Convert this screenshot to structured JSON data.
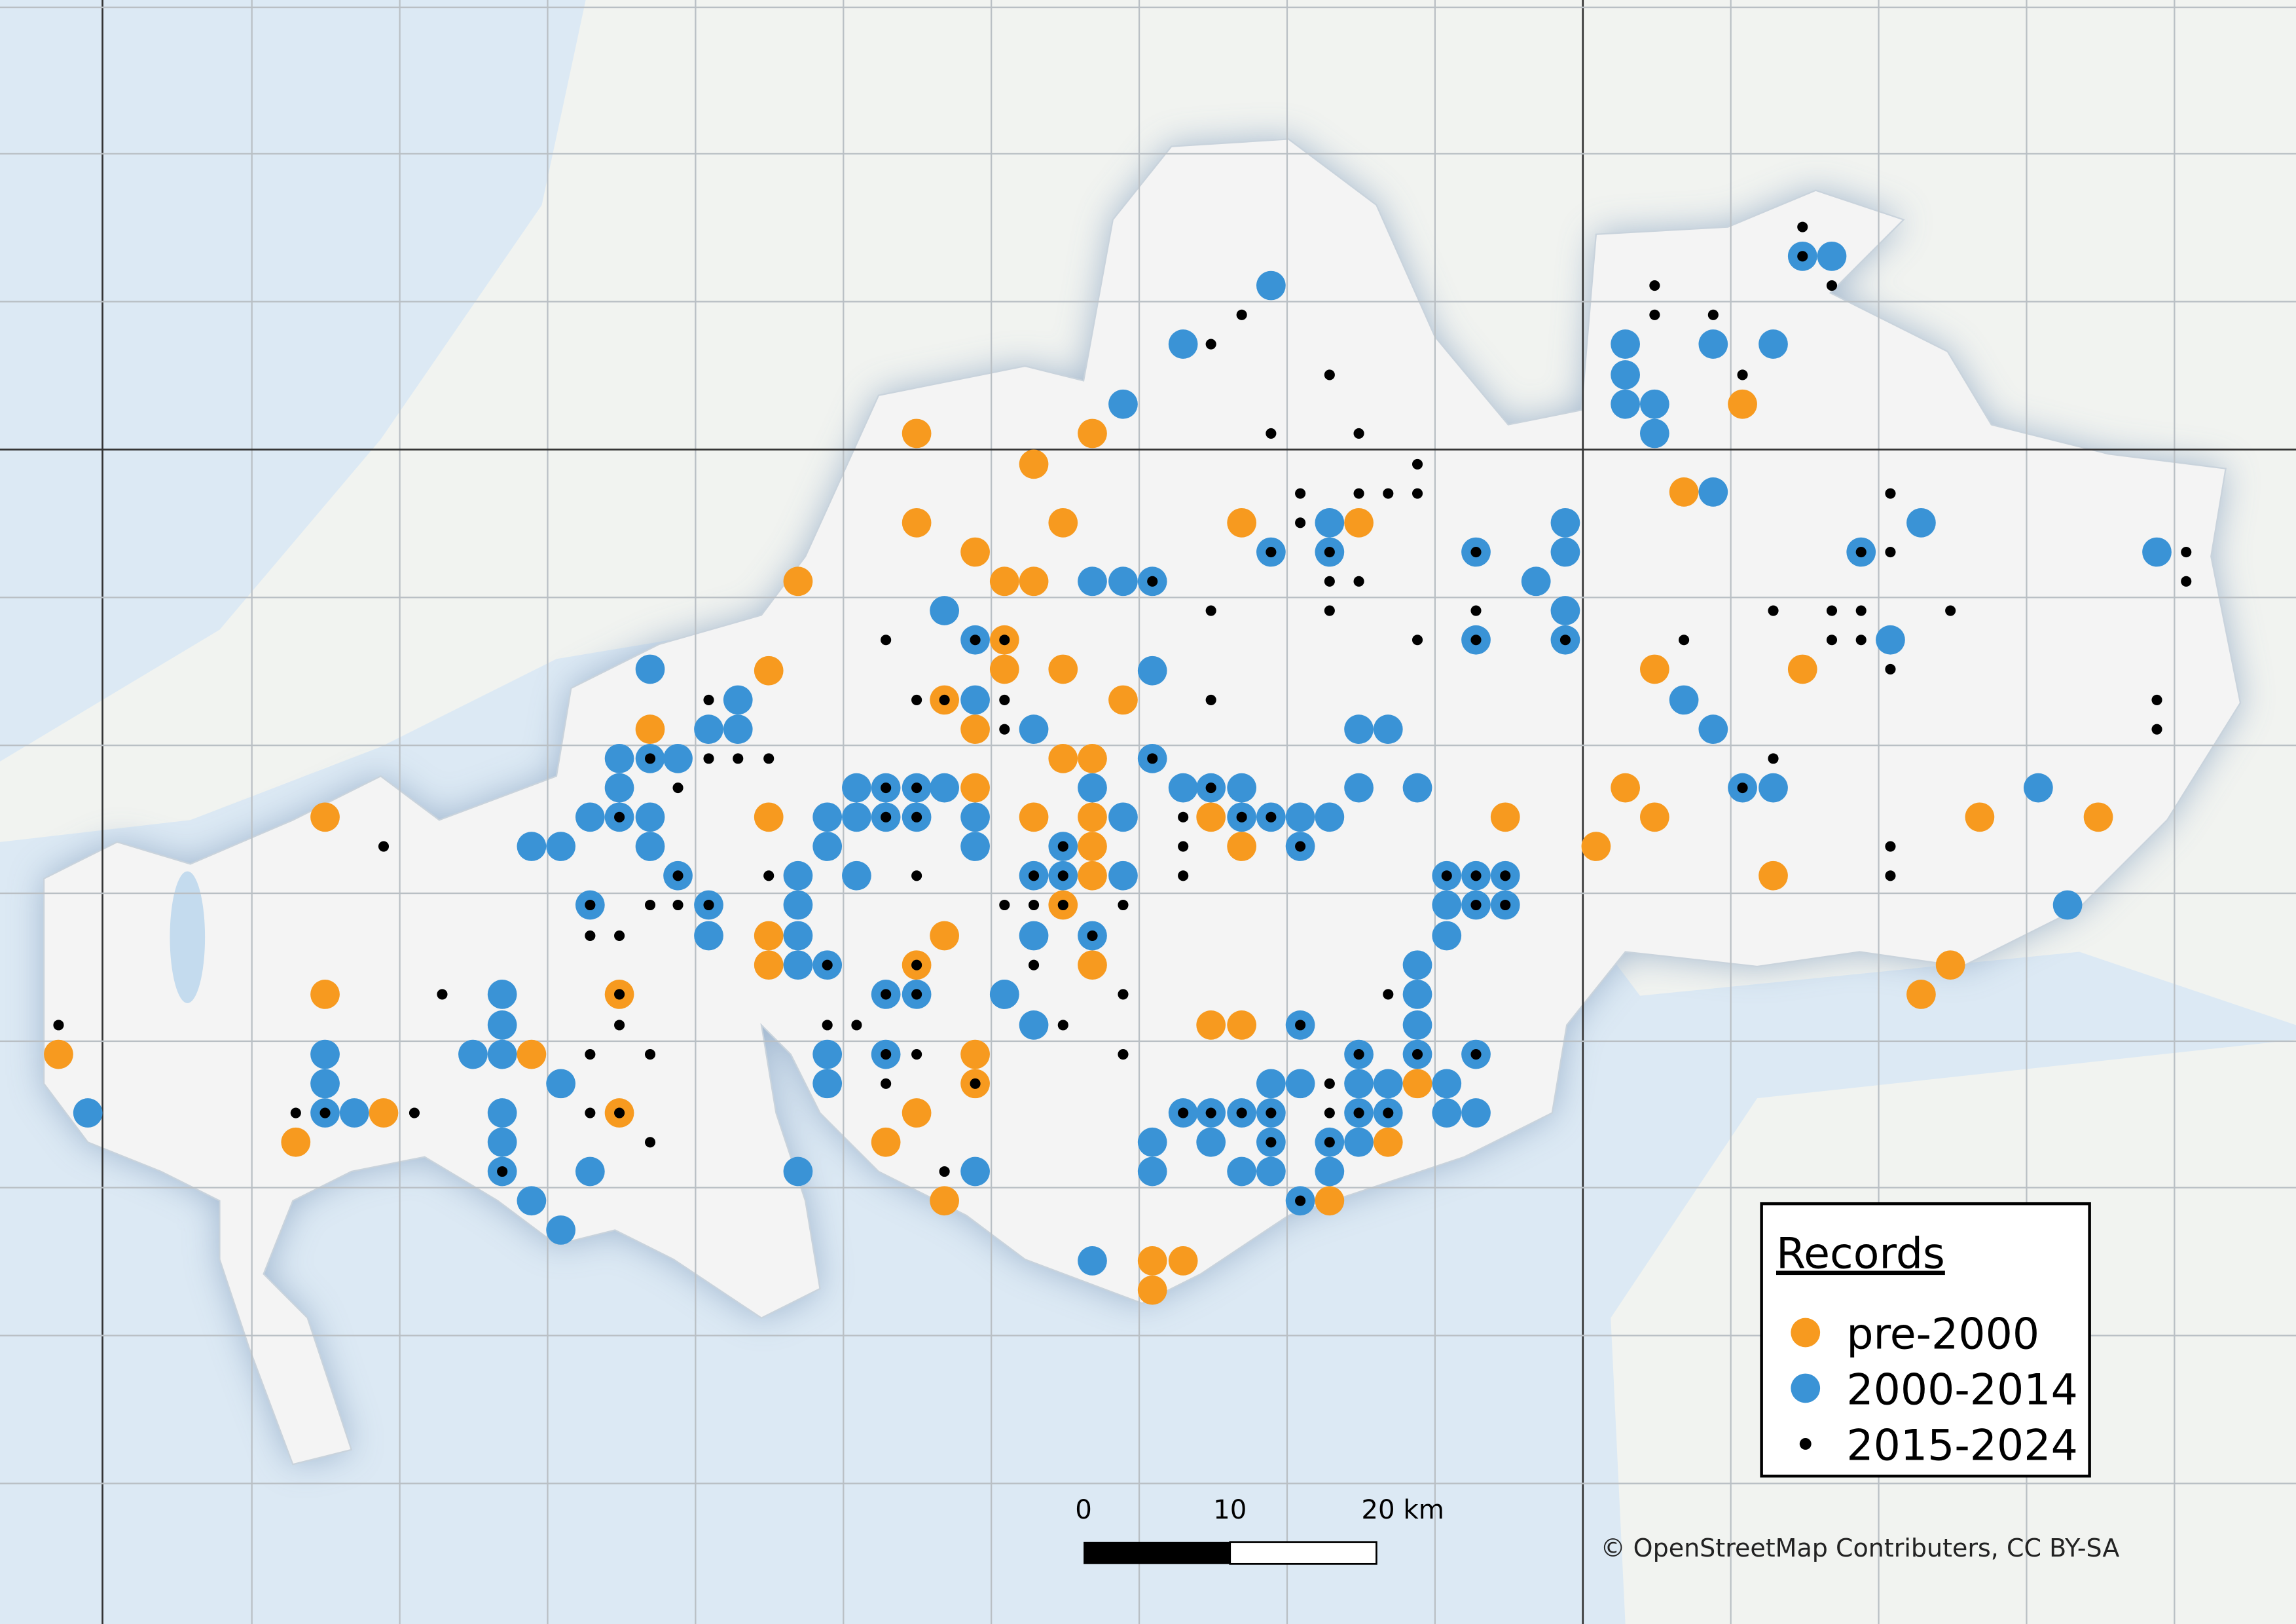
{
  "legend": {
    "title": "Records",
    "items": [
      {
        "name": "pre-2000",
        "color": "#f79a1f"
      },
      {
        "name": "2000-2014",
        "color": "#3a93d6"
      },
      {
        "name": "2015-2024",
        "color": "#000000"
      }
    ]
  },
  "scale_bar": {
    "labels": [
      "0",
      "10",
      "20 km"
    ]
  },
  "attribution": "© OpenStreetMap Contributers, CC BY-SA"
}
